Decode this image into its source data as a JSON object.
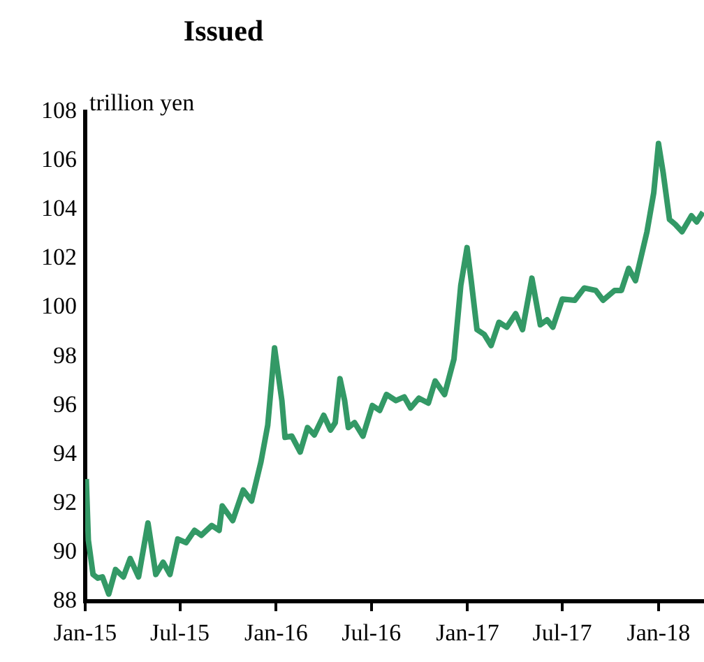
{
  "chart_data": {
    "type": "line",
    "title": "Issued",
    "ylabel": "trillion yen",
    "x": [
      "2015-01-03",
      "2015-01-07",
      "2015-01-16",
      "2015-01-25",
      "2015-02-03",
      "2015-02-15",
      "2015-02-28",
      "2015-03-15",
      "2015-03-28",
      "2015-04-13",
      "2015-05-01",
      "2015-05-16",
      "2015-05-30",
      "2015-06-12",
      "2015-06-27",
      "2015-07-13",
      "2015-07-29",
      "2015-08-11",
      "2015-08-31",
      "2015-09-14",
      "2015-09-20",
      "2015-10-10",
      "2015-10-30",
      "2015-11-15",
      "2015-12-03",
      "2015-12-16",
      "2015-12-29",
      "2016-01-12",
      "2016-01-18",
      "2016-01-31",
      "2016-02-16",
      "2016-03-01",
      "2016-03-14",
      "2016-04-01",
      "2016-04-14",
      "2016-04-23",
      "2016-05-02",
      "2016-05-11",
      "2016-05-18",
      "2016-05-30",
      "2016-06-15",
      "2016-07-03",
      "2016-07-17",
      "2016-07-30",
      "2016-08-17",
      "2016-09-02",
      "2016-09-14",
      "2016-09-30",
      "2016-10-18",
      "2016-10-31",
      "2016-11-18",
      "2016-12-06",
      "2016-12-19",
      "2016-12-31",
      "2017-01-08",
      "2017-01-19",
      "2017-02-02",
      "2017-02-15",
      "2017-03-02",
      "2017-03-17",
      "2017-04-03",
      "2017-04-16",
      "2017-05-04",
      "2017-05-20",
      "2017-06-02",
      "2017-06-13",
      "2017-07-01",
      "2017-07-25",
      "2017-08-12",
      "2017-09-03",
      "2017-09-17",
      "2017-10-09",
      "2017-10-22",
      "2017-11-05",
      "2017-11-18",
      "2017-12-10",
      "2017-12-23",
      "2018-01-01",
      "2018-01-10",
      "2018-01-22",
      "2018-02-02",
      "2018-02-15",
      "2018-03-05",
      "2018-03-15",
      "2018-03-27"
    ],
    "series": [
      {
        "color": "#339966",
        "values": [
          93.0,
          90.5,
          89.1,
          88.95,
          89.0,
          88.3,
          89.3,
          89.0,
          89.75,
          89.0,
          91.2,
          89.1,
          89.6,
          89.1,
          90.55,
          90.4,
          90.9,
          90.7,
          91.1,
          90.9,
          91.9,
          91.3,
          92.55,
          92.1,
          93.7,
          95.2,
          98.35,
          96.2,
          94.7,
          94.75,
          94.1,
          95.1,
          94.8,
          95.6,
          95.0,
          95.3,
          97.1,
          96.2,
          95.1,
          95.3,
          94.75,
          96.0,
          95.8,
          96.45,
          96.2,
          96.35,
          95.9,
          96.3,
          96.1,
          97.0,
          96.45,
          97.9,
          100.9,
          102.45,
          101.1,
          99.1,
          98.9,
          98.45,
          99.4,
          99.2,
          99.75,
          99.1,
          101.2,
          99.3,
          99.5,
          99.2,
          100.35,
          100.3,
          100.8,
          100.7,
          100.3,
          100.7,
          100.7,
          101.6,
          101.1,
          103.1,
          104.7,
          106.7,
          105.5,
          103.6,
          103.4,
          103.1,
          103.75,
          103.5,
          103.9
        ]
      }
    ],
    "xlim": [
      "2015-01-01",
      "2018-03-29"
    ],
    "xticks": [
      {
        "value": "2015-01-01",
        "label": "Jan-15"
      },
      {
        "value": "2015-07-01",
        "label": "Jul-15"
      },
      {
        "value": "2016-01-01",
        "label": "Jan-16"
      },
      {
        "value": "2016-07-01",
        "label": "Jul-16"
      },
      {
        "value": "2017-01-01",
        "label": "Jan-17"
      },
      {
        "value": "2017-07-01",
        "label": "Jul-17"
      },
      {
        "value": "2018-01-01",
        "label": "Jan-18"
      }
    ],
    "ylim": [
      88,
      108
    ],
    "yticks": [
      88,
      90,
      92,
      94,
      96,
      98,
      100,
      102,
      104,
      106,
      108
    ],
    "grid": false,
    "legend": false,
    "marker": "none",
    "line_style": "solid"
  }
}
